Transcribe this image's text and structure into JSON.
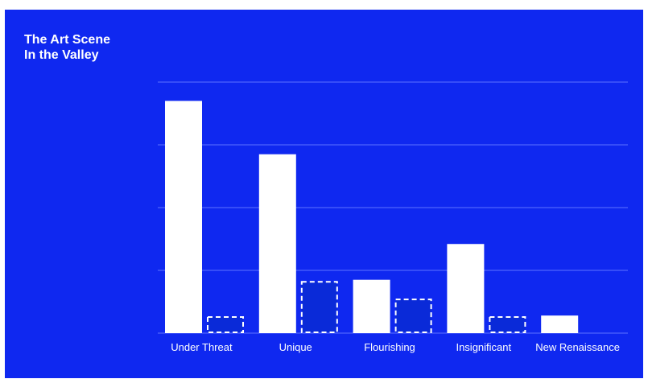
{
  "title_lines": [
    "The Art Scene",
    "In the Valley"
  ],
  "colors": {
    "background": "#0f28f0",
    "bar_solid": "#ffffff",
    "bar_dashed_fill": "#0a2ad8",
    "dashed_stroke": "#ffffff",
    "grid": "#5e72ff"
  },
  "chart_data": {
    "type": "bar",
    "title": "The Art Scene In the Valley",
    "categories": [
      "Under Threat",
      "Unique",
      "Flourishing",
      "Insignificant",
      "New Renaissance"
    ],
    "series": [
      {
        "values": [
          370,
          285,
          85,
          142,
          28
        ],
        "style": "solid"
      },
      {
        "values": [
          27,
          83,
          55,
          27,
          0
        ],
        "style": "dashed-outline"
      }
    ],
    "ylim": [
      0,
      400
    ],
    "grid": true,
    "y_tick_labels_visible": false
  }
}
